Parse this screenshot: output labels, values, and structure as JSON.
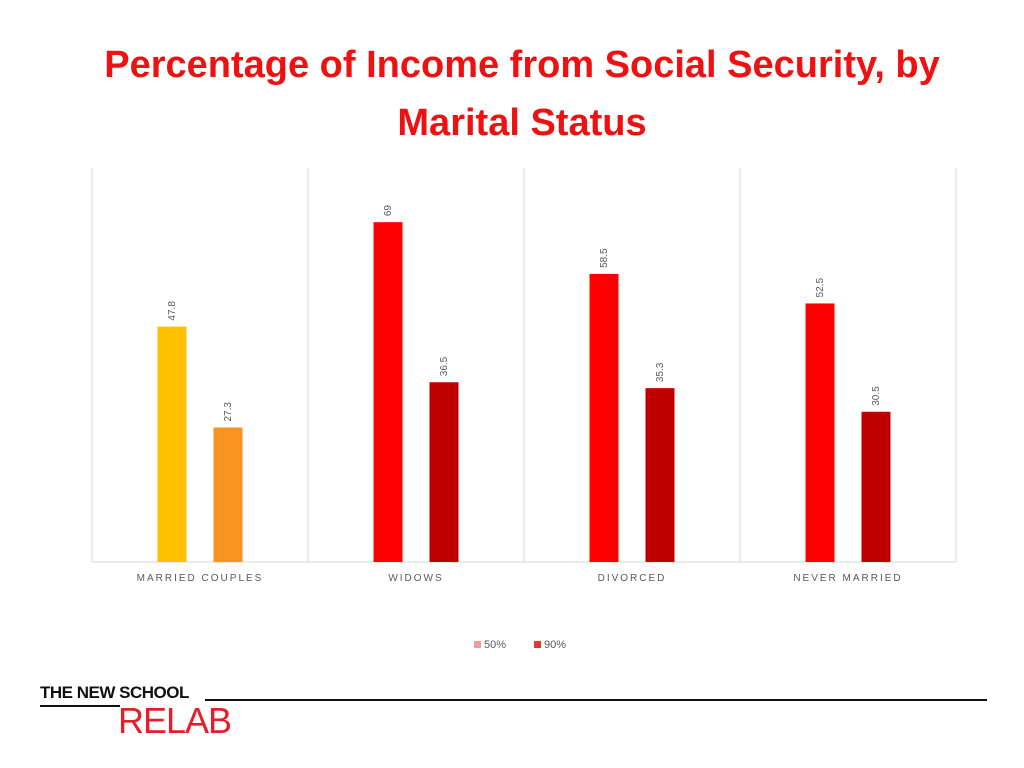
{
  "title": "Percentage of Income from Social Security, by Marital Status",
  "chart_data": {
    "type": "bar",
    "categories": [
      "MARRIED COUPLES",
      "WIDOWS",
      "DIVORCED",
      "NEVER MARRIED"
    ],
    "series": [
      {
        "name": "50%",
        "values": [
          47.8,
          69,
          58.5,
          52.5
        ],
        "color": "#ff0000",
        "point_colors": [
          "#ffc000",
          "#ff0000",
          "#ff0000",
          "#ff0000"
        ],
        "legend_color": "#f4989b"
      },
      {
        "name": "90%",
        "values": [
          27.3,
          36.5,
          35.3,
          30.5
        ],
        "color": "#c00000",
        "point_colors": [
          "#f7931e",
          "#c00000",
          "#c00000",
          "#c00000"
        ],
        "legend_color": "#e0392f"
      }
    ],
    "ylim": [
      0,
      80
    ],
    "grid": false,
    "legend": "bottom",
    "data_labels": true
  },
  "logo": {
    "line1": "THE NEW SCHOOL",
    "line2": "RELAB",
    "colors": {
      "line1": "#111111",
      "line2": "#e2202a"
    }
  }
}
